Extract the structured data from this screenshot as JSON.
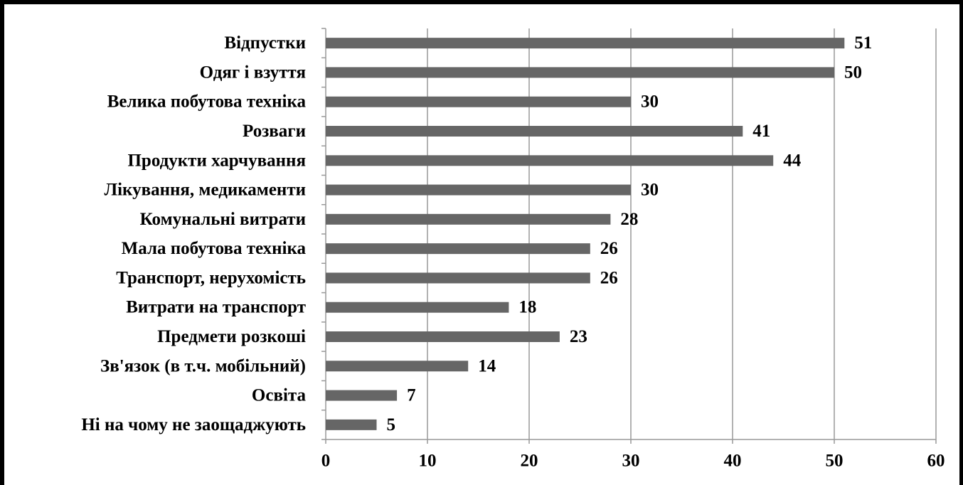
{
  "chart_data": {
    "type": "bar",
    "orientation": "horizontal",
    "categories": [
      "Відпустки",
      "Одяг і взуття",
      "Велика побутова техніка",
      "Розваги",
      "Продукти харчування",
      "Лікування, медикаменти",
      "Комунальні витрати",
      "Мала побутова техніка",
      "Транспорт, нерухомість",
      "Витрати на транспорт",
      "Предмети розкоші",
      "Зв'язок (в т.ч. мобільний)",
      "Освіта",
      "Ні на чому не заощаджують"
    ],
    "values": [
      51,
      50,
      30,
      41,
      44,
      30,
      28,
      26,
      26,
      18,
      23,
      14,
      7,
      5
    ],
    "xlim": [
      0,
      60
    ],
    "xticks": [
      0,
      10,
      20,
      30,
      40,
      50,
      60
    ],
    "grid": "vertical",
    "legend": "none",
    "title": "",
    "xlabel": "",
    "ylabel": "",
    "bar_color": "#666666",
    "grid_color": "#999999"
  }
}
